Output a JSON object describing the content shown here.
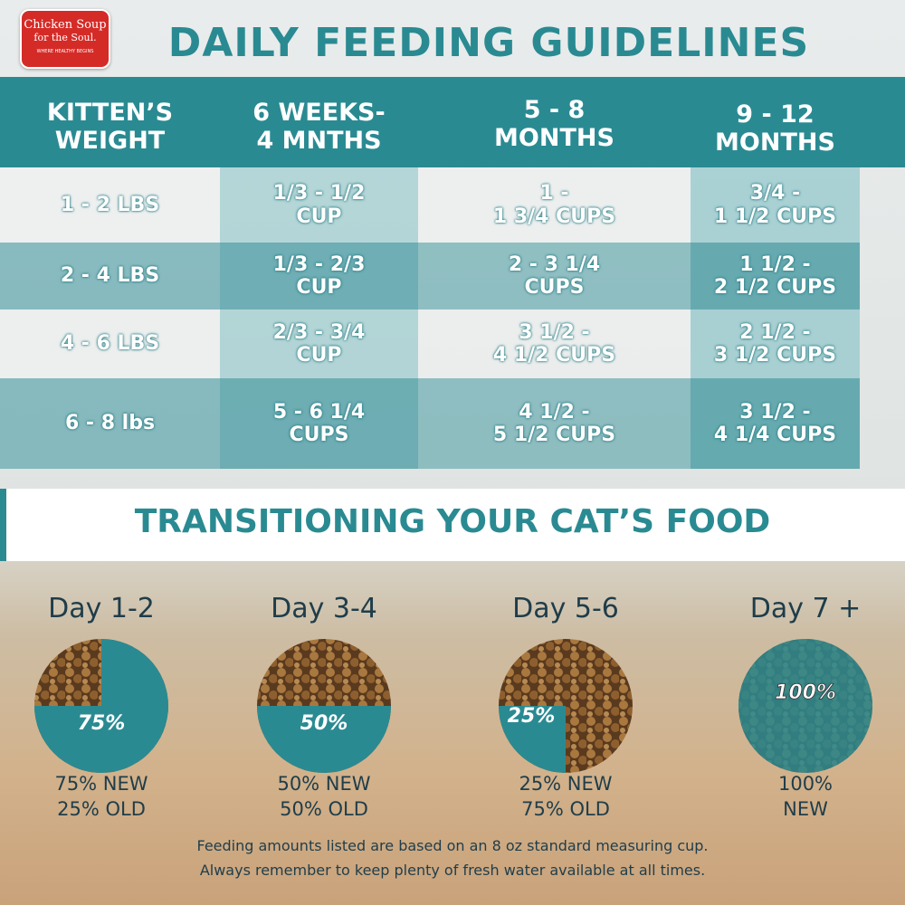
{
  "logo": {
    "line1": "Chicken Soup",
    "line2": "for the Soul.",
    "tagline": "WHERE HEALTHY BEGINS"
  },
  "title": "DAILY FEEDING GUIDELINES",
  "table": {
    "header": [
      "KITTEN’S\nWEIGHT",
      "6 WEEKS-\n4 MNTHS",
      "5 - 8\nMONTHS",
      "9 - 12\nMONTHS"
    ],
    "rows": [
      [
        "1 - 2 LBS",
        "1/3 - 1/2\nCUP",
        "1 -\n1 3/4 CUPS",
        "3/4 -\n1 1/2 CUPS"
      ],
      [
        "2 - 4 LBS",
        "1/3 - 2/3\nCUP",
        "2 - 3 1/4\nCUPS",
        "1 1/2 -\n2 1/2 CUPS"
      ],
      [
        "4 - 6 LBS",
        "2/3 - 3/4\nCUP",
        "3 1/2 -\n4 1/2 CUPS",
        "2 1/2 -\n3 1/2 CUPS"
      ],
      [
        "6 - 8 lbs",
        "5 - 6 1/4\nCUPS",
        "4 1/2 -\n5 1/2 CUPS",
        "3 1/2 -\n4 1/4 CUPS"
      ]
    ]
  },
  "transition": {
    "title": "TRANSITIONING YOUR CAT’S FOOD",
    "days": [
      {
        "label": "Day 1-2",
        "value": 75,
        "value_label": "75%",
        "caption": "75% NEW\n25% OLD"
      },
      {
        "label": "Day 3-4",
        "value": 50,
        "value_label": "50%",
        "caption": "50% NEW\n50% OLD"
      },
      {
        "label": "Day 5-6",
        "value": 25,
        "value_label": "25%",
        "caption": "25% NEW\n75% OLD"
      },
      {
        "label": "Day 7 +",
        "value": 100,
        "value_label": "100%",
        "caption": "100%\nNEW"
      }
    ]
  },
  "footer": [
    "Feeding amounts listed are based on an 8 oz standard measuring cup.",
    "Always remember to keep plenty of fresh water available at all times."
  ]
}
